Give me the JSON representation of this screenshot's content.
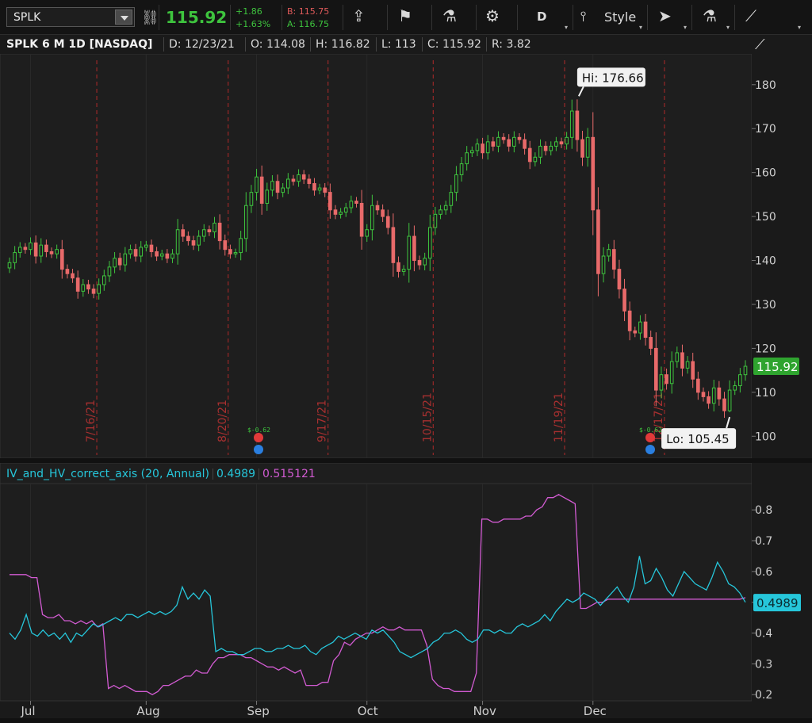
{
  "toolbar": {
    "symbol": "SPLK",
    "last_price": "115.92",
    "change_abs": "+1.86",
    "change_pct": "+1.63%",
    "bid": "B: 115.75",
    "ask": "A: 116.75",
    "period": "D",
    "style_label": "Style",
    "icons": [
      "link-icon",
      "share-icon",
      "flag-icon",
      "flask-icon",
      "gear-icon",
      "candles-icon",
      "cursor-icon",
      "flask-icon",
      "drawing-icon"
    ]
  },
  "header": {
    "title": "SPLK 6 M 1D [NASDAQ]",
    "date": "D: 12/23/21",
    "open": "O: 114.08",
    "high": "H: 116.82",
    "low": "L: 113",
    "close": "C: 115.92",
    "range": "R: 3.82"
  },
  "indicator": {
    "name": "IV_and_HV_correct_axis (20, Annual)",
    "value1": "0.4989",
    "value2": "0.515121"
  },
  "colors": {
    "up": "#3ec43e",
    "down": "#e86a6a",
    "iv": "#26c6da",
    "hv": "#d25bd2",
    "event_line": "#b02a2a"
  },
  "chart_data": [
    {
      "type": "candlestick",
      "title": "SPLK 6 M 1D [NASDAQ]",
      "ylim": [
        95,
        187
      ],
      "y_ticks": [
        "180",
        "170",
        "160",
        "150",
        "140",
        "130",
        "120",
        "110",
        "100"
      ],
      "last_label": "115.92",
      "hi_label": "Hi: 176.66",
      "lo_label": "Lo: 105.45",
      "event_labels": [
        "7/16/21",
        "8/20/21",
        "9/17/21",
        "10/15/21",
        "11/19/21",
        "12/17/21"
      ],
      "dividend_labels": [
        "$-0.62",
        "$-0.62"
      ],
      "x_ticks": [
        "Jul",
        "Aug",
        "Sep",
        "Oct",
        "Nov",
        "Dec"
      ],
      "close": [
        139.5,
        141.8,
        143.0,
        142.5,
        144.0,
        141.0,
        143.5,
        142.0,
        141.5,
        142.5,
        138.0,
        137.0,
        136.0,
        133.0,
        134.5,
        133.5,
        132.5,
        134.5,
        136.5,
        138.5,
        140.5,
        139.0,
        141.5,
        142.5,
        141.0,
        143.0,
        143.5,
        142.0,
        141.0,
        141.5,
        140.5,
        141.5,
        147.0,
        145.5,
        144.5,
        143.5,
        145.5,
        147.0,
        146.5,
        148.5,
        144.5,
        142.5,
        141.5,
        141.8,
        145.0,
        152.5,
        155.5,
        159.0,
        153.0,
        156.0,
        158.0,
        155.5,
        156.5,
        158.5,
        158.0,
        159.5,
        158.5,
        157.5,
        156.0,
        156.5,
        155.5,
        151.5,
        150.5,
        151.0,
        152.0,
        153.5,
        153.0,
        145.5,
        147.0,
        152.5,
        151.5,
        150.0,
        147.5,
        139.5,
        137.5,
        138.0,
        145.5,
        140.0,
        139.0,
        140.5,
        147.5,
        150.5,
        151.5,
        152.5,
        155.5,
        159.5,
        162.0,
        164.5,
        165.0,
        166.5,
        164.5,
        167.0,
        166.0,
        168.0,
        167.5,
        166.0,
        168.0,
        167.5,
        165.5,
        162.5,
        163.5,
        166.0,
        165.0,
        166.0,
        167.0,
        166.5,
        168.0,
        174.0,
        167.5,
        163.5,
        168.0,
        151.5,
        137.0,
        141.0,
        142.5,
        138.0,
        133.5,
        128.5,
        124.0,
        123.5,
        126.0,
        122.5,
        120.0,
        110.5,
        114.0,
        112.0,
        117.0,
        119.0,
        115.5,
        117.0,
        113.0,
        110.0,
        109.0,
        107.5,
        111.0,
        108.5,
        105.8,
        110.5,
        111.5,
        114.0,
        115.92
      ]
    },
    {
      "type": "line",
      "ylim": [
        0.18,
        0.87
      ],
      "y_ticks": [
        "0.8",
        "0.7",
        "0.6",
        "0.5",
        "0.4",
        "0.3",
        "0.2"
      ],
      "x_ticks": [
        "Jul",
        "Aug",
        "Sep",
        "Oct",
        "Nov",
        "Dec"
      ],
      "series": [
        {
          "name": "0.4989",
          "values": [
            0.4,
            0.38,
            0.41,
            0.46,
            0.4,
            0.39,
            0.41,
            0.39,
            0.4,
            0.38,
            0.4,
            0.37,
            0.4,
            0.39,
            0.41,
            0.43,
            0.42,
            0.43,
            0.44,
            0.45,
            0.44,
            0.46,
            0.46,
            0.45,
            0.46,
            0.47,
            0.46,
            0.47,
            0.46,
            0.47,
            0.49,
            0.55,
            0.51,
            0.53,
            0.51,
            0.54,
            0.52,
            0.34,
            0.35,
            0.34,
            0.34,
            0.33,
            0.33,
            0.34,
            0.35,
            0.35,
            0.34,
            0.34,
            0.35,
            0.35,
            0.36,
            0.35,
            0.35,
            0.36,
            0.34,
            0.33,
            0.35,
            0.36,
            0.37,
            0.39,
            0.38,
            0.39,
            0.4,
            0.39,
            0.38,
            0.41,
            0.4,
            0.41,
            0.39,
            0.37,
            0.34,
            0.33,
            0.32,
            0.33,
            0.34,
            0.35,
            0.37,
            0.38,
            0.4,
            0.4,
            0.41,
            0.4,
            0.38,
            0.37,
            0.38,
            0.41,
            0.41,
            0.4,
            0.41,
            0.4,
            0.4,
            0.42,
            0.43,
            0.42,
            0.43,
            0.44,
            0.46,
            0.44,
            0.47,
            0.49,
            0.51,
            0.5,
            0.51,
            0.53,
            0.52,
            0.51,
            0.49,
            0.51,
            0.53,
            0.55,
            0.52,
            0.5,
            0.55,
            0.65,
            0.56,
            0.57,
            0.61,
            0.58,
            0.54,
            0.52,
            0.56,
            0.6,
            0.58,
            0.56,
            0.55,
            0.54,
            0.58,
            0.63,
            0.6,
            0.56,
            0.55,
            0.53,
            0.5
          ],
          "color": "#26c6da"
        },
        {
          "name": "0.515121",
          "values": [
            0.59,
            0.59,
            0.59,
            0.59,
            0.58,
            0.58,
            0.46,
            0.45,
            0.45,
            0.46,
            0.44,
            0.44,
            0.43,
            0.44,
            0.43,
            0.44,
            0.42,
            0.43,
            0.22,
            0.23,
            0.22,
            0.23,
            0.22,
            0.21,
            0.21,
            0.21,
            0.2,
            0.21,
            0.23,
            0.23,
            0.24,
            0.25,
            0.26,
            0.26,
            0.28,
            0.27,
            0.27,
            0.3,
            0.32,
            0.32,
            0.33,
            0.33,
            0.33,
            0.32,
            0.32,
            0.31,
            0.3,
            0.29,
            0.29,
            0.28,
            0.29,
            0.28,
            0.27,
            0.28,
            0.23,
            0.23,
            0.23,
            0.24,
            0.24,
            0.31,
            0.33,
            0.37,
            0.36,
            0.38,
            0.39,
            0.4,
            0.4,
            0.41,
            0.42,
            0.41,
            0.41,
            0.42,
            0.41,
            0.41,
            0.41,
            0.41,
            0.36,
            0.25,
            0.23,
            0.22,
            0.22,
            0.21,
            0.21,
            0.21,
            0.21,
            0.27,
            0.77,
            0.77,
            0.76,
            0.76,
            0.77,
            0.77,
            0.77,
            0.77,
            0.78,
            0.78,
            0.8,
            0.81,
            0.84,
            0.84,
            0.85,
            0.84,
            0.83,
            0.82,
            0.48,
            0.48,
            0.49,
            0.5,
            0.5,
            0.51,
            0.51,
            0.51,
            0.51,
            0.51,
            0.51,
            0.51,
            0.51,
            0.51,
            0.51,
            0.51,
            0.51,
            0.51,
            0.51,
            0.51,
            0.51,
            0.51,
            0.51,
            0.51,
            0.51,
            0.51,
            0.51,
            0.51,
            0.51,
            0.51,
            0.515
          ],
          "color": "#d25bd2"
        }
      ]
    }
  ]
}
